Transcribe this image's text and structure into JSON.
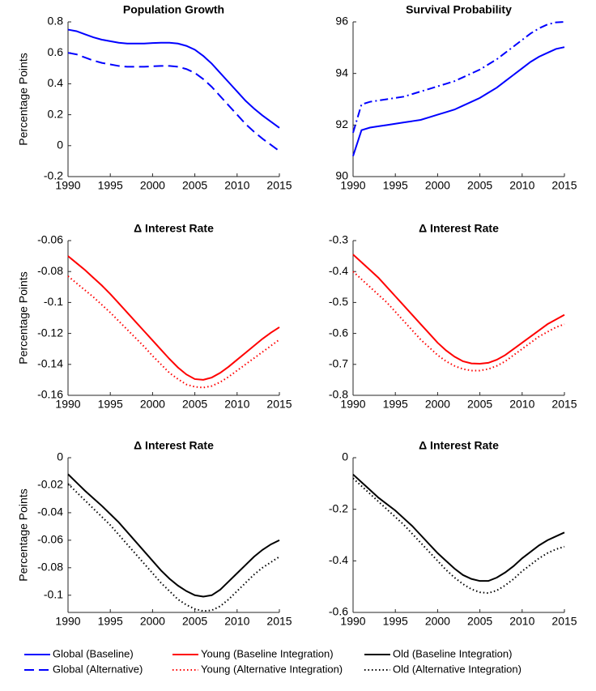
{
  "chart_data": [
    {
      "type": "line",
      "title": "Population Growth",
      "ylabel": "Percentage Points",
      "x": [
        1990,
        1991,
        1992,
        1993,
        1994,
        1995,
        1996,
        1997,
        1998,
        1999,
        2000,
        2001,
        2002,
        2003,
        2004,
        2005,
        2006,
        2007,
        2008,
        2009,
        2010,
        2011,
        2012,
        2013,
        2014,
        2015
      ],
      "xlim": [
        1990,
        2015
      ],
      "xticks": [
        1990,
        1995,
        2000,
        2005,
        2010,
        2015
      ],
      "ylim": [
        -0.2,
        0.8
      ],
      "yticks": [
        -0.2,
        0,
        0.2,
        0.4,
        0.6,
        0.8
      ],
      "series": [
        {
          "name": "Global (Baseline)",
          "color": "#0000ff",
          "style": "solid",
          "values": [
            0.75,
            0.74,
            0.72,
            0.7,
            0.685,
            0.675,
            0.665,
            0.66,
            0.66,
            0.66,
            0.663,
            0.665,
            0.665,
            0.66,
            0.645,
            0.62,
            0.58,
            0.53,
            0.47,
            0.41,
            0.35,
            0.29,
            0.24,
            0.195,
            0.155,
            0.115
          ]
        },
        {
          "name": "Global (Alternative)",
          "color": "#0000ff",
          "style": "dashed",
          "values": [
            0.6,
            0.59,
            0.57,
            0.55,
            0.535,
            0.525,
            0.515,
            0.51,
            0.51,
            0.51,
            0.513,
            0.515,
            0.515,
            0.51,
            0.495,
            0.47,
            0.43,
            0.38,
            0.32,
            0.26,
            0.2,
            0.14,
            0.09,
            0.045,
            0.005,
            -0.035
          ]
        }
      ]
    },
    {
      "type": "line",
      "title": "Survival Probability",
      "x": [
        1990,
        1991,
        1992,
        1993,
        1994,
        1995,
        1996,
        1997,
        1998,
        1999,
        2000,
        2001,
        2002,
        2003,
        2004,
        2005,
        2006,
        2007,
        2008,
        2009,
        2010,
        2011,
        2012,
        2013,
        2014,
        2015
      ],
      "xlim": [
        1990,
        2015
      ],
      "xticks": [
        1990,
        1995,
        2000,
        2005,
        2010,
        2015
      ],
      "ylim": [
        90,
        96
      ],
      "yticks": [
        90,
        92,
        94,
        96
      ],
      "series": [
        {
          "color": "#0000ff",
          "style": "solid",
          "values": [
            90.8,
            91.8,
            91.9,
            91.95,
            92.0,
            92.05,
            92.1,
            92.15,
            92.2,
            92.3,
            92.4,
            92.5,
            92.6,
            92.75,
            92.9,
            93.05,
            93.25,
            93.45,
            93.7,
            93.95,
            94.2,
            94.45,
            94.65,
            94.8,
            94.95,
            95.02
          ]
        },
        {
          "color": "#0000ff",
          "style": "dashdot",
          "values": [
            91.7,
            92.8,
            92.9,
            92.95,
            93.0,
            93.05,
            93.1,
            93.2,
            93.3,
            93.4,
            93.5,
            93.6,
            93.7,
            93.85,
            94.0,
            94.15,
            94.35,
            94.55,
            94.8,
            95.05,
            95.3,
            95.55,
            95.75,
            95.9,
            95.98,
            96.0
          ]
        }
      ]
    },
    {
      "type": "line",
      "title": "Δ Interest Rate",
      "ylabel": "Percentage Points",
      "x": [
        1990,
        1991,
        1992,
        1993,
        1994,
        1995,
        1996,
        1997,
        1998,
        1999,
        2000,
        2001,
        2002,
        2003,
        2004,
        2005,
        2006,
        2007,
        2008,
        2009,
        2010,
        2011,
        2012,
        2013,
        2014,
        2015
      ],
      "xlim": [
        1990,
        2015
      ],
      "xticks": [
        1990,
        1995,
        2000,
        2005,
        2010,
        2015
      ],
      "ylim": [
        -0.16,
        -0.06
      ],
      "yticks": [
        -0.16,
        -0.14,
        -0.12,
        -0.1,
        -0.08,
        -0.06
      ],
      "series": [
        {
          "name": "Young (Baseline Integration)",
          "color": "#ff0000",
          "style": "solid",
          "values": [
            -0.07,
            -0.0745,
            -0.079,
            -0.084,
            -0.089,
            -0.0945,
            -0.1005,
            -0.1065,
            -0.1125,
            -0.1185,
            -0.1245,
            -0.1305,
            -0.1365,
            -0.142,
            -0.1465,
            -0.1495,
            -0.15,
            -0.1485,
            -0.1455,
            -0.1415,
            -0.137,
            -0.1325,
            -0.128,
            -0.1235,
            -0.1195,
            -0.116
          ]
        },
        {
          "name": "Young (Alternative Integration)",
          "color": "#ff0000",
          "style": "dotted",
          "values": [
            -0.083,
            -0.0875,
            -0.092,
            -0.0965,
            -0.1015,
            -0.1065,
            -0.112,
            -0.1175,
            -0.123,
            -0.1285,
            -0.1345,
            -0.14,
            -0.1455,
            -0.1495,
            -0.153,
            -0.1545,
            -0.155,
            -0.154,
            -0.1515,
            -0.148,
            -0.144,
            -0.14,
            -0.136,
            -0.132,
            -0.128,
            -0.124
          ]
        }
      ]
    },
    {
      "type": "line",
      "title": "Δ Interest Rate",
      "x": [
        1990,
        1991,
        1992,
        1993,
        1994,
        1995,
        1996,
        1997,
        1998,
        1999,
        2000,
        2001,
        2002,
        2003,
        2004,
        2005,
        2006,
        2007,
        2008,
        2009,
        2010,
        2011,
        2012,
        2013,
        2014,
        2015
      ],
      "xlim": [
        1990,
        2015
      ],
      "xticks": [
        1990,
        1995,
        2000,
        2005,
        2010,
        2015
      ],
      "ylim": [
        -0.8,
        -0.3
      ],
      "yticks": [
        -0.8,
        -0.7,
        -0.6,
        -0.5,
        -0.4,
        -0.3
      ],
      "series": [
        {
          "color": "#ff0000",
          "style": "solid",
          "values": [
            -0.345,
            -0.37,
            -0.395,
            -0.42,
            -0.45,
            -0.48,
            -0.51,
            -0.54,
            -0.57,
            -0.6,
            -0.63,
            -0.655,
            -0.675,
            -0.69,
            -0.697,
            -0.698,
            -0.695,
            -0.685,
            -0.67,
            -0.65,
            -0.63,
            -0.61,
            -0.59,
            -0.57,
            -0.555,
            -0.54
          ]
        },
        {
          "color": "#ff0000",
          "style": "dotted",
          "values": [
            -0.4,
            -0.425,
            -0.45,
            -0.475,
            -0.5,
            -0.53,
            -0.56,
            -0.59,
            -0.62,
            -0.645,
            -0.67,
            -0.69,
            -0.705,
            -0.715,
            -0.72,
            -0.72,
            -0.715,
            -0.705,
            -0.69,
            -0.67,
            -0.65,
            -0.63,
            -0.61,
            -0.595,
            -0.58,
            -0.57
          ]
        }
      ]
    },
    {
      "type": "line",
      "title": "Δ Interest Rate",
      "ylabel": "Percentage Points",
      "x": [
        1990,
        1991,
        1992,
        1993,
        1994,
        1995,
        1996,
        1997,
        1998,
        1999,
        2000,
        2001,
        2002,
        2003,
        2004,
        2005,
        2006,
        2007,
        2008,
        2009,
        2010,
        2011,
        2012,
        2013,
        2014,
        2015
      ],
      "xlim": [
        1990,
        2015
      ],
      "xticks": [
        1990,
        1995,
        2000,
        2005,
        2010,
        2015
      ],
      "ylim": [
        -0.1125,
        0
      ],
      "yticks": [
        -0.1,
        -0.08,
        -0.06,
        -0.04,
        -0.02,
        0
      ],
      "series": [
        {
          "name": "Old (Baseline Integration)",
          "color": "#000000",
          "style": "solid",
          "values": [
            -0.012,
            -0.018,
            -0.024,
            -0.0295,
            -0.035,
            -0.041,
            -0.047,
            -0.054,
            -0.061,
            -0.068,
            -0.075,
            -0.082,
            -0.088,
            -0.093,
            -0.097,
            -0.1,
            -0.101,
            -0.1,
            -0.096,
            -0.09,
            -0.084,
            -0.078,
            -0.072,
            -0.067,
            -0.063,
            -0.06
          ]
        },
        {
          "name": "Old (Alternative Integration)",
          "color": "#000000",
          "style": "dotted",
          "values": [
            -0.019,
            -0.025,
            -0.031,
            -0.037,
            -0.043,
            -0.049,
            -0.056,
            -0.063,
            -0.07,
            -0.077,
            -0.084,
            -0.091,
            -0.097,
            -0.103,
            -0.107,
            -0.11,
            -0.1115,
            -0.111,
            -0.108,
            -0.103,
            -0.097,
            -0.091,
            -0.085,
            -0.08,
            -0.076,
            -0.072
          ]
        }
      ]
    },
    {
      "type": "line",
      "title": "Δ Interest Rate",
      "x": [
        1990,
        1991,
        1992,
        1993,
        1994,
        1995,
        1996,
        1997,
        1998,
        1999,
        2000,
        2001,
        2002,
        2003,
        2004,
        2005,
        2006,
        2007,
        2008,
        2009,
        2010,
        2011,
        2012,
        2013,
        2014,
        2015
      ],
      "xlim": [
        1990,
        2015
      ],
      "xticks": [
        1990,
        1995,
        2000,
        2005,
        2010,
        2015
      ],
      "ylim": [
        -0.6,
        0
      ],
      "yticks": [
        -0.6,
        -0.4,
        -0.2,
        0
      ],
      "series": [
        {
          "color": "#000000",
          "style": "solid",
          "values": [
            -0.065,
            -0.095,
            -0.125,
            -0.155,
            -0.18,
            -0.205,
            -0.235,
            -0.265,
            -0.3,
            -0.335,
            -0.37,
            -0.4,
            -0.43,
            -0.455,
            -0.47,
            -0.478,
            -0.478,
            -0.465,
            -0.445,
            -0.42,
            -0.39,
            -0.365,
            -0.34,
            -0.32,
            -0.305,
            -0.29
          ]
        },
        {
          "color": "#000000",
          "style": "dotted",
          "values": [
            -0.08,
            -0.11,
            -0.14,
            -0.17,
            -0.2,
            -0.23,
            -0.26,
            -0.295,
            -0.33,
            -0.365,
            -0.4,
            -0.435,
            -0.465,
            -0.49,
            -0.51,
            -0.522,
            -0.525,
            -0.515,
            -0.495,
            -0.47,
            -0.44,
            -0.415,
            -0.39,
            -0.37,
            -0.355,
            -0.345
          ]
        }
      ]
    }
  ]
}
